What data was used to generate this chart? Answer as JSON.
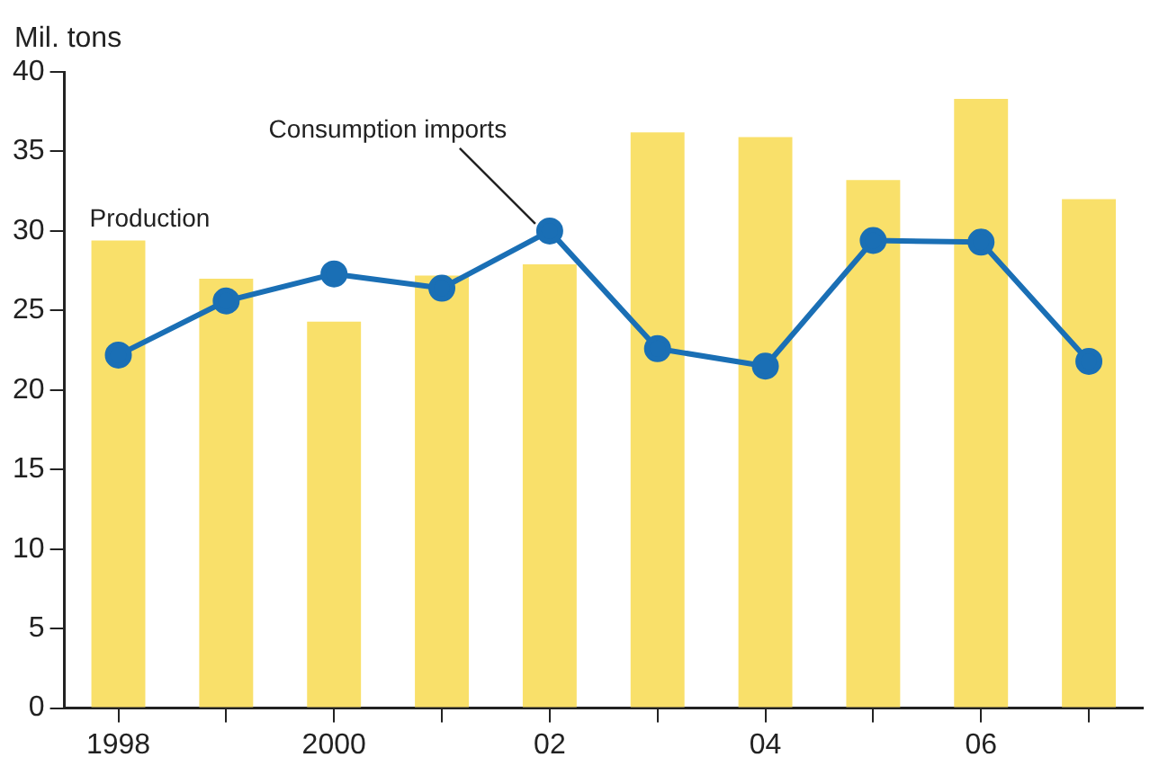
{
  "chart_data": {
    "type": "bar",
    "ylabel": "Mil. tons",
    "categories": [
      "1998",
      null,
      "2000",
      null,
      "02",
      null,
      "04",
      null,
      "06",
      null
    ],
    "series": [
      {
        "type": "bar",
        "color": "#f9e06a",
        "values": [
          29.4,
          27.0,
          24.3,
          27.2,
          27.9,
          36.2,
          35.9,
          33.2,
          38.3,
          32.0
        ]
      },
      {
        "type": "line",
        "color": "#1a6fb5",
        "marker": "circle",
        "values": [
          22.2,
          25.6,
          27.3,
          26.4,
          30.0,
          22.6,
          21.5,
          29.4,
          29.3,
          21.8
        ]
      }
    ],
    "ylim": [
      0,
      40
    ],
    "yticks": [
      0,
      5,
      10,
      15,
      20,
      25,
      30,
      35,
      40
    ],
    "grid": false,
    "legend": false,
    "annotations": [
      {
        "text": "Production",
        "x": "1998",
        "y": 29.4
      },
      {
        "text": "Consumption imports",
        "x": "02",
        "y": 30.0
      }
    ]
  }
}
